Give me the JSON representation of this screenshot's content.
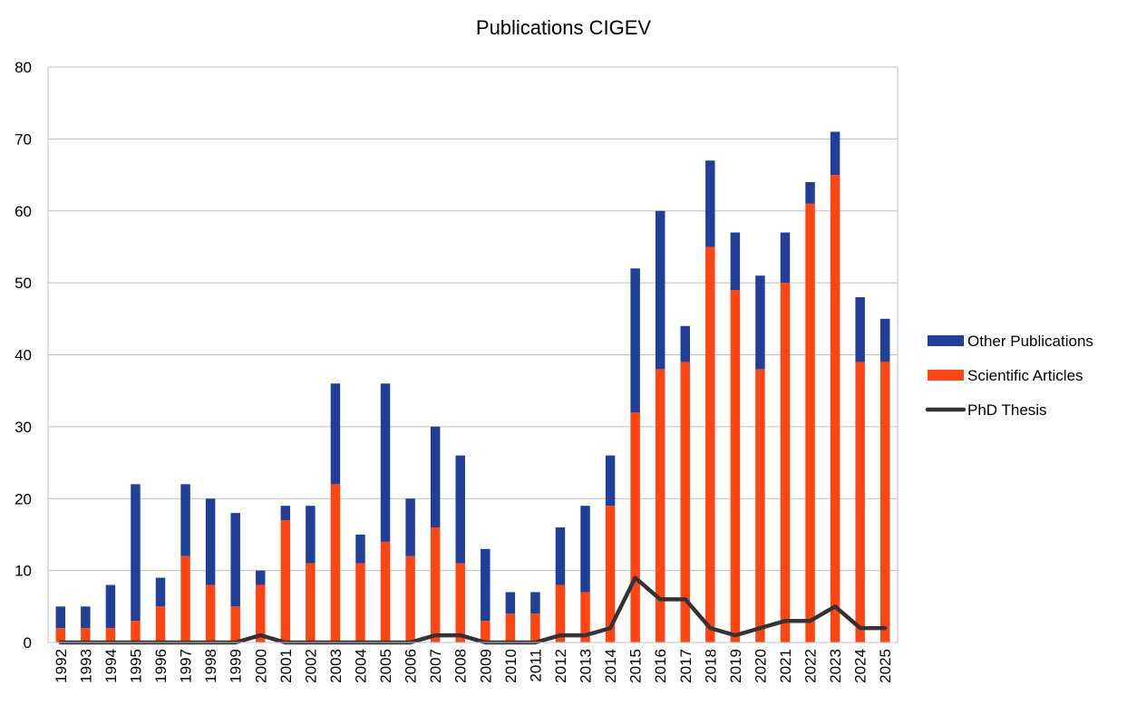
{
  "chart_data": {
    "type": "bar",
    "stacked": true,
    "title": "Publications CIGEV",
    "xlabel": "",
    "ylabel": "",
    "ylim": [
      0,
      80
    ],
    "yticks": [
      0,
      10,
      20,
      30,
      40,
      50,
      60,
      70,
      80
    ],
    "grid": true,
    "legend_position": "right",
    "categories": [
      "1992",
      "1993",
      "1994",
      "1995",
      "1996",
      "1997",
      "1998",
      "1999",
      "2000",
      "2001",
      "2002",
      "2003",
      "2004",
      "2005",
      "2006",
      "2007",
      "2008",
      "2009",
      "2010",
      "2011",
      "2012",
      "2013",
      "2014",
      "2015",
      "2016",
      "2017",
      "2018",
      "2019",
      "2020",
      "2021",
      "2022",
      "2023",
      "2024",
      "2025"
    ],
    "series": [
      {
        "name": "Scientific Articles",
        "type": "bar",
        "color": "#FF4612",
        "values": [
          2,
          2,
          2,
          3,
          5,
          12,
          8,
          5,
          8,
          17,
          11,
          22,
          11,
          14,
          12,
          16,
          11,
          3,
          4,
          4,
          8,
          7,
          19,
          32,
          38,
          39,
          55,
          49,
          38,
          50,
          61,
          65,
          39,
          39
        ]
      },
      {
        "name": "Other Publications",
        "type": "bar",
        "color": "#213F99",
        "values": [
          3,
          3,
          6,
          19,
          4,
          10,
          12,
          13,
          2,
          2,
          8,
          14,
          4,
          22,
          8,
          14,
          15,
          10,
          3,
          3,
          8,
          12,
          7,
          20,
          22,
          5,
          12,
          8,
          13,
          7,
          3,
          6,
          9,
          6
        ]
      },
      {
        "name": "PhD Thesis",
        "type": "line",
        "color": "#333333",
        "values": [
          0,
          0,
          0,
          0,
          0,
          0,
          0,
          0,
          1,
          0,
          0,
          0,
          0,
          0,
          0,
          1,
          1,
          0,
          0,
          0,
          1,
          1,
          2,
          9,
          6,
          6,
          2,
          1,
          2,
          3,
          3,
          5,
          2,
          2
        ]
      }
    ],
    "legend_order": [
      "Other Publications",
      "Scientific Articles",
      "PhD Thesis"
    ]
  }
}
